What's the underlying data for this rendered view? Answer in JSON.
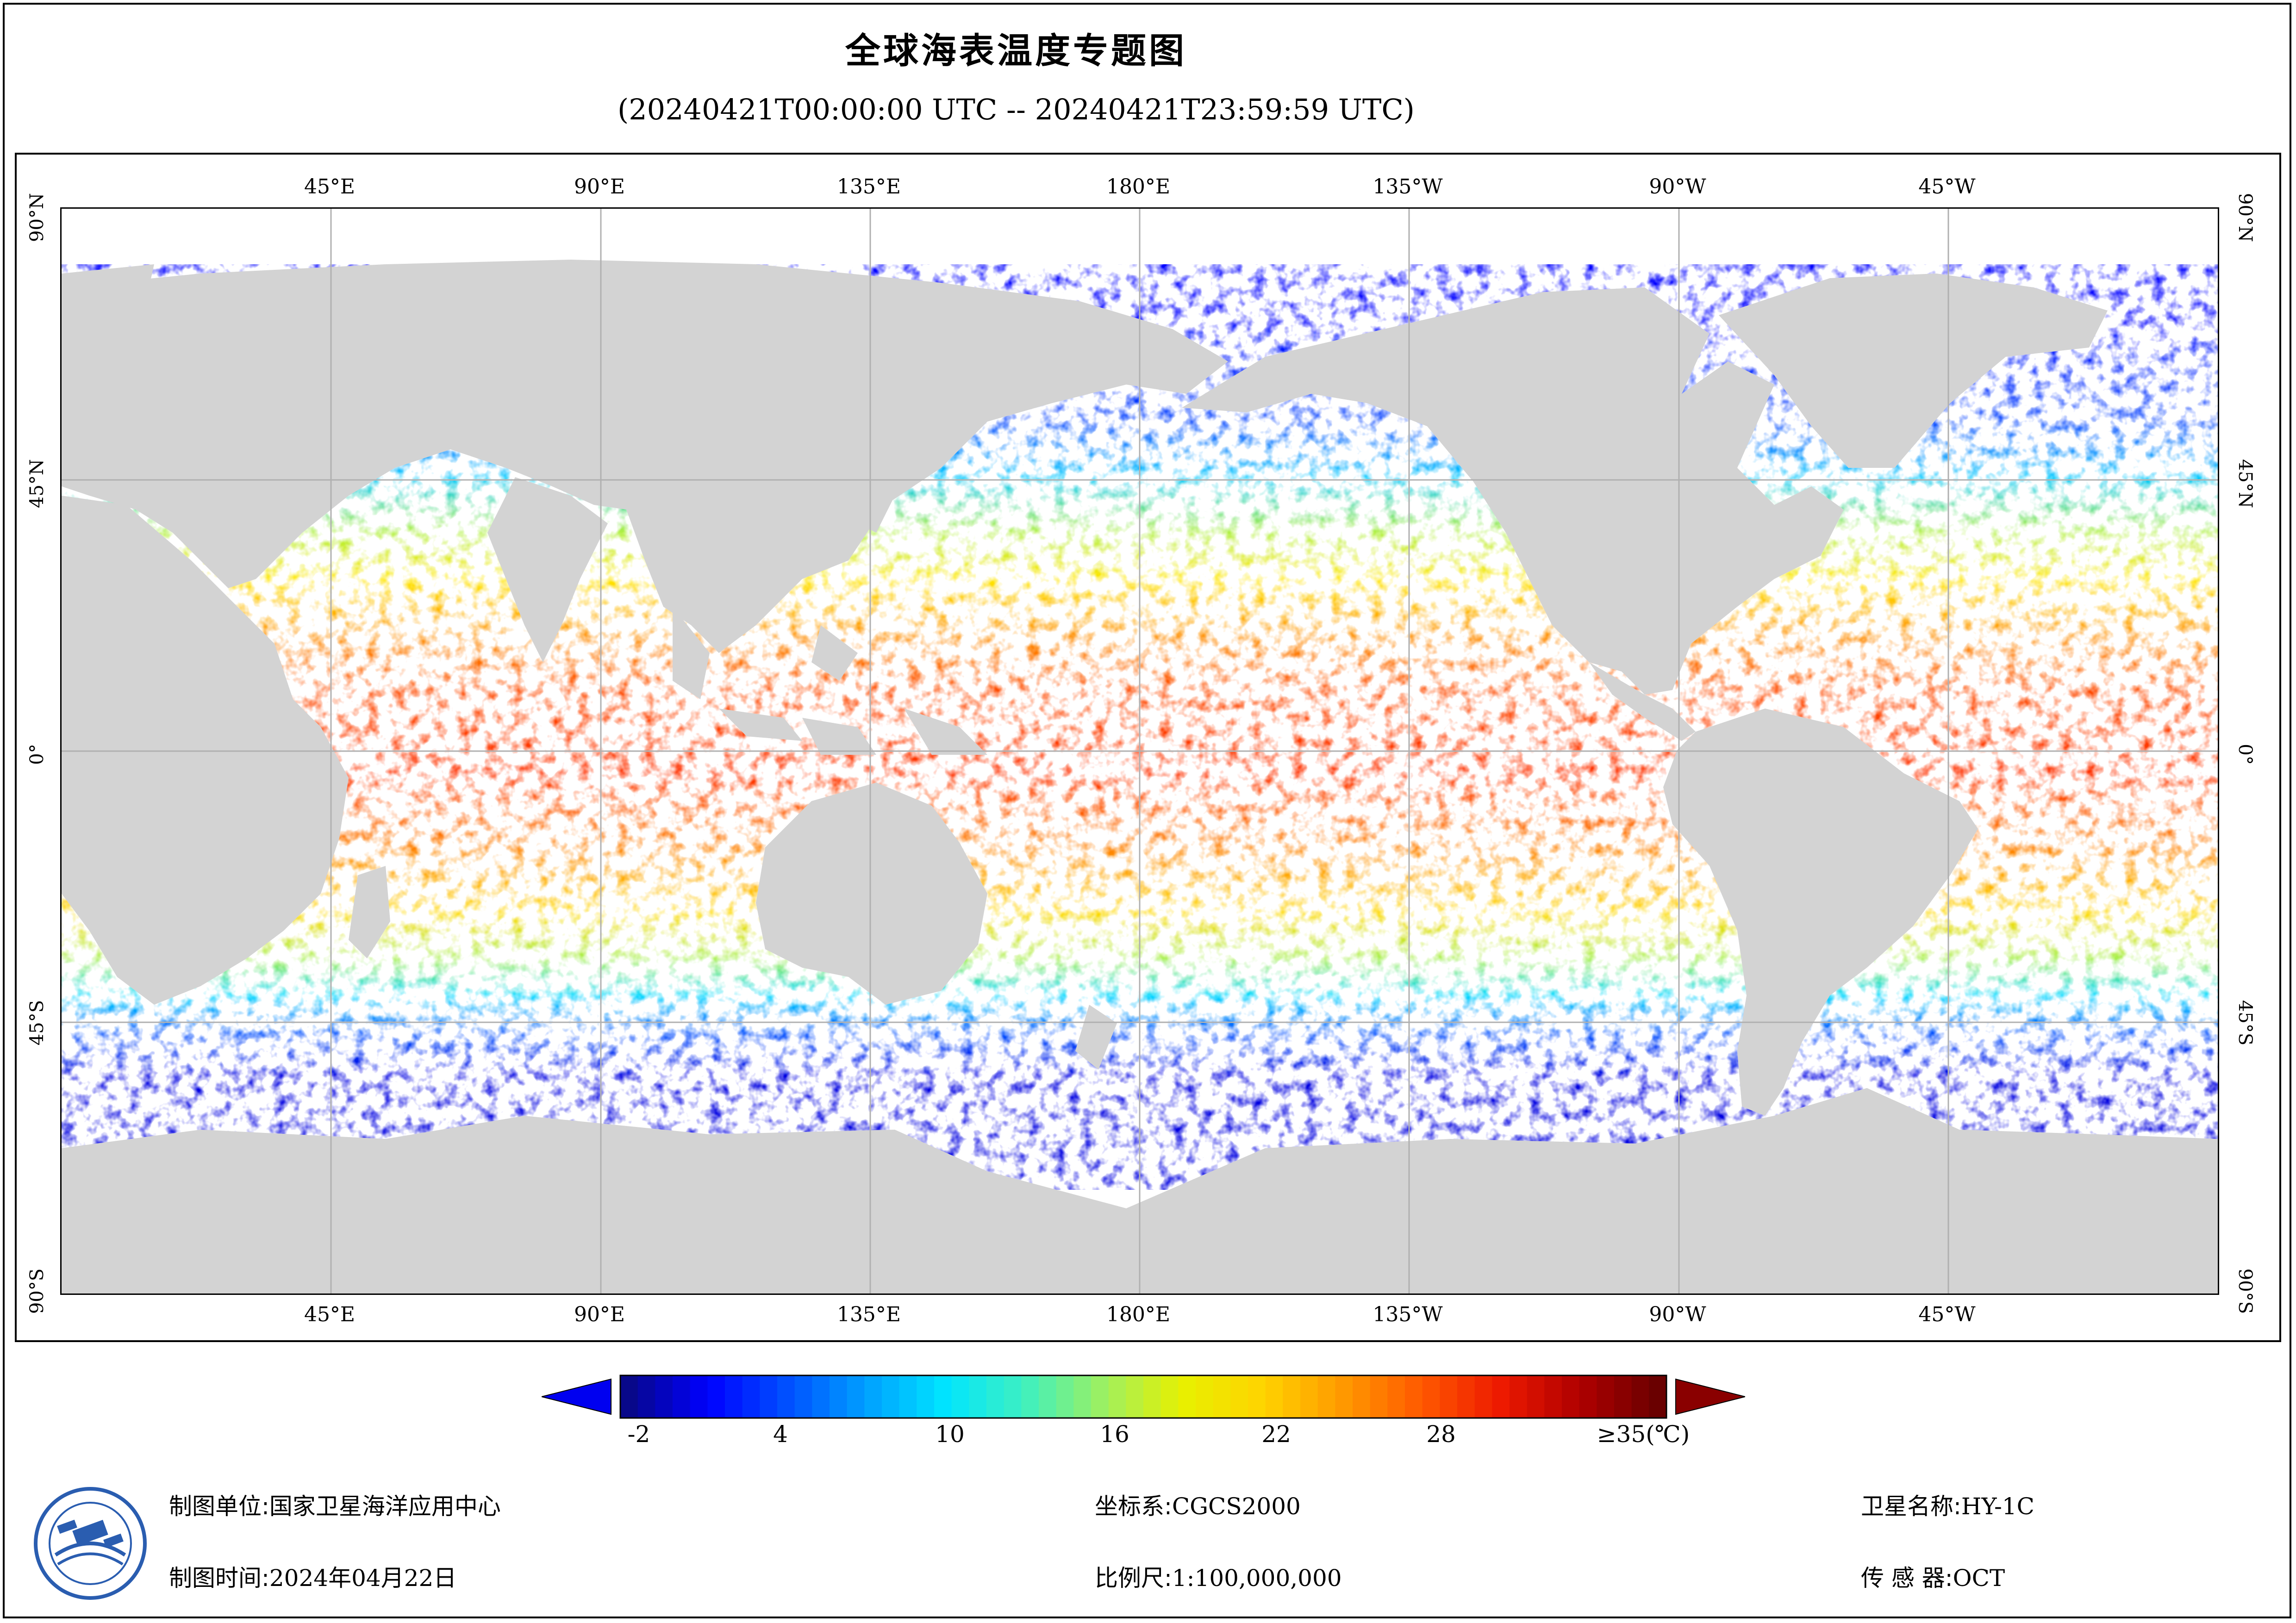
{
  "title": "全球海表温度专题图",
  "subtitle": "(20240421T00:00:00 UTC -- 20240421T23:59:59 UTC)",
  "map": {
    "projection": "equirectangular, central meridian 180°",
    "lon_labels": [
      "45°E",
      "90°E",
      "135°E",
      "180°E",
      "135°W",
      "90°W",
      "45°W"
    ],
    "lat_labels": [
      "90°N",
      "45°N",
      "0°",
      "45°S",
      "90°S"
    ],
    "colors": {
      "land": "#d3d3d3",
      "no_data": "#ffffff",
      "grid": "#b0b0b0"
    }
  },
  "colorbar": {
    "min": -4,
    "max": 35,
    "ticks": [
      "-2",
      "4",
      "10",
      "16",
      "22",
      "28"
    ],
    "max_label": "≥35(℃)",
    "colors": [
      "#08088a",
      "#0000ff",
      "#0050ff",
      "#00a0ff",
      "#00e5ff",
      "#3ff0c0",
      "#9ef060",
      "#e8f000",
      "#ffd400",
      "#ff9a00",
      "#ff5a00",
      "#ee1a00",
      "#b00000",
      "#6a0000"
    ]
  },
  "footer": {
    "unit_label": "制图单位:",
    "unit_value": "国家卫星海洋应用中心",
    "time_label": "制图时间:",
    "time_value": "2024年04月22日",
    "crs_label": "坐标系:",
    "crs_value": "CGCS2000",
    "scale_label": "比例尺:",
    "scale_value": "1:100,000,000",
    "sat_label": "卫星名称:",
    "sat_value": "HY-1C",
    "sensor_label": "传 感 器:",
    "sensor_value": "OCT"
  },
  "logo": {
    "icon": "nsoas-logo-icon"
  }
}
